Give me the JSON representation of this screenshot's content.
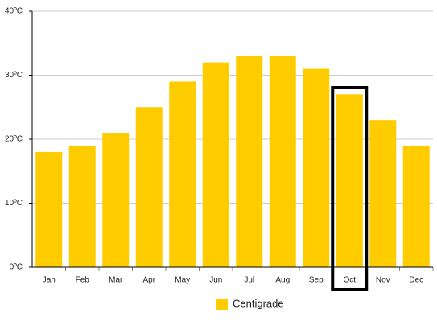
{
  "chart_data": {
    "type": "bar",
    "categories": [
      "Jan",
      "Feb",
      "Mar",
      "Apr",
      "May",
      "Jun",
      "Jul",
      "Aug",
      "Sep",
      "Oct",
      "Nov",
      "Dec"
    ],
    "series": [
      {
        "name": "Centigrade",
        "color": "#ffcc00",
        "values": [
          18,
          19,
          21,
          25,
          29,
          32,
          33,
          33,
          31,
          27,
          23,
          19
        ]
      }
    ],
    "ylim": [
      0,
      40
    ],
    "yticks": [
      {
        "value": 0,
        "label": "0ºC"
      },
      {
        "value": 10,
        "label": "10ºC"
      },
      {
        "value": 20,
        "label": "20ºC"
      },
      {
        "value": 30,
        "label": "30ºC"
      },
      {
        "value": 40,
        "label": "40ºC"
      }
    ],
    "grid": true,
    "highlight": "Oct"
  }
}
